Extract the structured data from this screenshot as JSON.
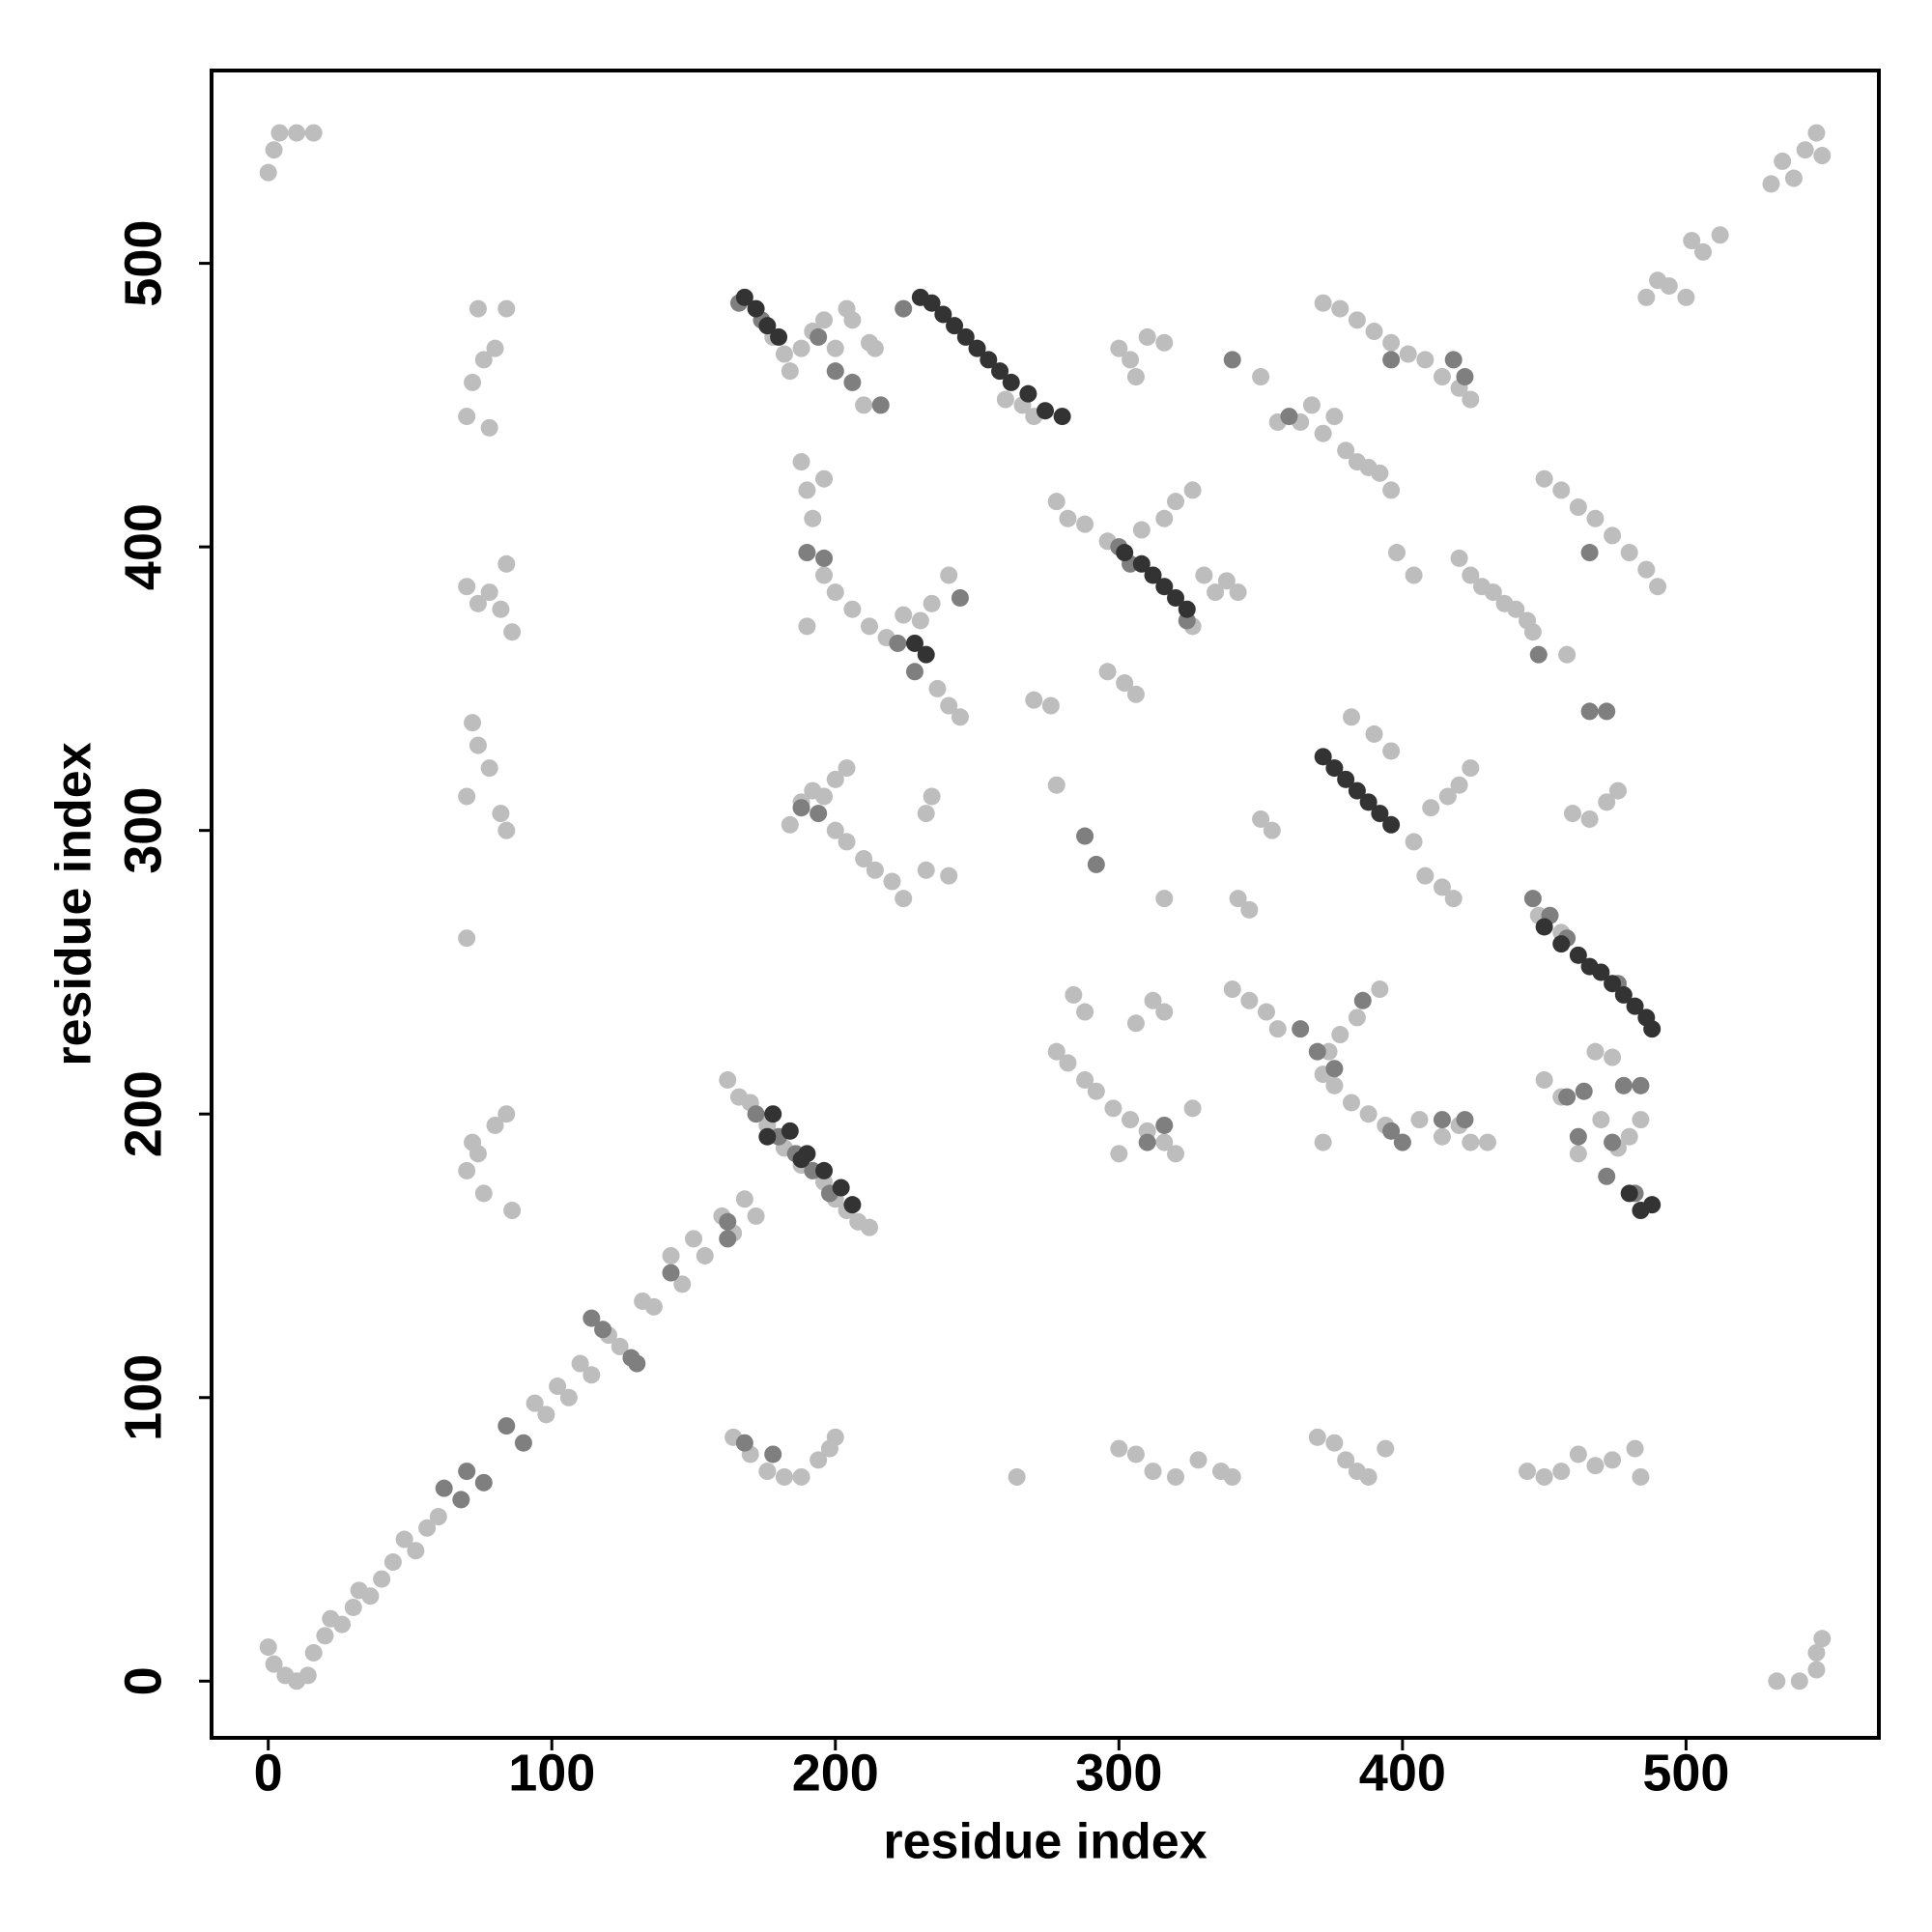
{
  "chart_data": {
    "type": "scatter",
    "xlabel": "residue index",
    "ylabel": "residue index",
    "xlim": [
      -20,
      568
    ],
    "ylim": [
      -20,
      568
    ],
    "xticks": [
      0,
      100,
      200,
      300,
      400,
      500
    ],
    "yticks": [
      0,
      100,
      200,
      300,
      400,
      500
    ],
    "grid": false,
    "series": [
      {
        "color": "#bdbdbd",
        "x": [
          0,
          2,
          6,
          10,
          14,
          16,
          20,
          22,
          26,
          30,
          32,
          36,
          40,
          44,
          48,
          52,
          56,
          60,
          94,
          98,
          102,
          106,
          110,
          114,
          120,
          124,
          132,
          136,
          142,
          146,
          150,
          154,
          160,
          164,
          168,
          172,
          0,
          2,
          4,
          10,
          16,
          532,
          540,
          546,
          546,
          548,
          486,
          490,
          494,
          500,
          502,
          506,
          512,
          530,
          534,
          538,
          542,
          546,
          548,
          162,
          166,
          170,
          176,
          182,
          188,
          196,
          200,
          204,
          208,
          212,
          70,
          72,
          74,
          76,
          80,
          84,
          86,
          70,
          72,
          74,
          78,
          82,
          84,
          70,
          74,
          78,
          82,
          84,
          86,
          70,
          72,
          74,
          76,
          80,
          84,
          78,
          70,
          164,
          170,
          176,
          182,
          188,
          194,
          198,
          200,
          300,
          306,
          312,
          320,
          328,
          336,
          340,
          370,
          376,
          380,
          384,
          388,
          394,
          444,
          450,
          456,
          462,
          468,
          474,
          482,
          484,
          264,
          400,
          406,
          414,
          420,
          424,
          430,
          450,
          456,
          462,
          470,
          476,
          480,
          484,
          184,
          188,
          192,
          196,
          200,
          204,
          206,
          212,
          214,
          210,
          178,
          182,
          260,
          266,
          270,
          188,
          190,
          192,
          196,
          190,
          196,
          200,
          206,
          212,
          218,
          224,
          230,
          234,
          236,
          240,
          244,
          240,
          184,
          188,
          192,
          196,
          200,
          204,
          200,
          204,
          210,
          214,
          220,
          224,
          232,
          234,
          232,
          240,
          278,
          282,
          288,
          296,
          326,
          316,
          320,
          326,
          308,
          300,
          304,
          310,
          316,
          306,
          270,
          276,
          278,
          296,
          302,
          306,
          330,
          334,
          338,
          342,
          350,
          356,
          364,
          368,
          372,
          376,
          380,
          384,
          388,
          392,
          396,
          398,
          404,
          372,
          378,
          384,
          390,
          396,
          402,
          408,
          414,
          420,
          424,
          420,
          424,
          428,
          432,
          436,
          440,
          444,
          446,
          450,
          456,
          462,
          468,
          474,
          480,
          486,
          490,
          458,
          382,
          390,
          396,
          404,
          408,
          414,
          418,
          410,
          416,
          420,
          424,
          350,
          354,
          342,
          346,
          316,
          460,
          466,
          472,
          476,
          278,
          282,
          288,
          292,
          298,
          304,
          310,
          316,
          320,
          300,
          326,
          284,
          288,
          312,
          316,
          306,
          340,
          346,
          352,
          356,
          372,
          376,
          382,
          388,
          394,
          372,
          374,
          378,
          384,
          392,
          468,
          474,
          448,
          456
        ],
        "values": [
          12,
          6,
          2,
          0,
          2,
          10,
          16,
          22,
          20,
          26,
          32,
          30,
          36,
          42,
          50,
          46,
          54,
          58,
          98,
          94,
          104,
          100,
          112,
          108,
          122,
          118,
          134,
          132,
          150,
          140,
          156,
          150,
          164,
          158,
          170,
          164,
          532,
          540,
          546,
          546,
          546,
          0,
          0,
          4,
          10,
          15,
          488,
          494,
          492,
          488,
          508,
          504,
          510,
          528,
          536,
          530,
          540,
          546,
          538,
          212,
          206,
          204,
          196,
          188,
          182,
          176,
          170,
          166,
          162,
          160,
          180,
          190,
          186,
          172,
          196,
          200,
          166,
          312,
          338,
          330,
          322,
          306,
          300,
          386,
          380,
          384,
          378,
          394,
          370,
          446,
          458,
          484,
          466,
          470,
          484,
          442,
          262,
          86,
          80,
          74,
          72,
          72,
          78,
          82,
          86,
          82,
          80,
          74,
          72,
          78,
          74,
          72,
          86,
          84,
          78,
          74,
          72,
          82,
          74,
          72,
          74,
          80,
          76,
          78,
          82,
          72,
          72,
          190,
          198,
          192,
          196,
          190,
          190,
          212,
          206,
          186,
          198,
          188,
          192,
          198,
          462,
          470,
          476,
          480,
          470,
          484,
          480,
          472,
          470,
          450,
          474,
          468,
          452,
          450,
          446,
          430,
          420,
          410,
          424,
          372,
          390,
          384,
          378,
          372,
          368,
          376,
          374,
          380,
          350,
          344,
          340,
          390,
          302,
          310,
          314,
          312,
          318,
          322,
          300,
          296,
          290,
          286,
          282,
          276,
          306,
          312,
          286,
          284,
          416,
          410,
          408,
          402,
          372,
          410,
          416,
          420,
          406,
          470,
          466,
          474,
          472,
          460,
          346,
          344,
          316,
          356,
          352,
          348,
          390,
          384,
          388,
          384,
          460,
          444,
          444,
          450,
          440,
          446,
          434,
          430,
          428,
          426,
          420,
          398,
          390,
          486,
          484,
          480,
          476,
          472,
          468,
          466,
          460,
          456,
          452,
          396,
          390,
          386,
          384,
          380,
          378,
          374,
          370,
          424,
          420,
          414,
          410,
          404,
          398,
          392,
          386,
          362,
          340,
          334,
          328,
          296,
          284,
          280,
          276,
          308,
          312,
          316,
          322,
          304,
          300,
          276,
          272,
          276,
          306,
          304,
          310,
          314,
          222,
          218,
          212,
          208,
          202,
          198,
          194,
          190,
          186,
          186,
          202,
          242,
          236,
          240,
          236,
          232,
          244,
          240,
          236,
          230,
          214,
          210,
          204,
          200,
          196,
          190,
          222,
          228,
          234,
          244,
          222,
          220,
          270,
          264
        ]
      },
      {
        "color": "#7f7f7f",
        "x": [
          62,
          68,
          70,
          76,
          84,
          90,
          114,
          118,
          128,
          130,
          142,
          162,
          162,
          172,
          180,
          186,
          192,
          198,
          166,
          174,
          194,
          200,
          206,
          216,
          224,
          190,
          196,
          222,
          228,
          244,
          188,
          194,
          288,
          292,
          300,
          304,
          324,
          340,
          360,
          396,
          418,
          422,
          364,
          370,
          376,
          386,
          396,
          400,
          414,
          422,
          448,
          466,
          466,
          472,
          446,
          452,
          458,
          476,
          458,
          464,
          478,
          484,
          462,
          474,
          472,
          482,
          310,
          316,
          168,
          178
        ],
        "values": [
          68,
          64,
          74,
          70,
          90,
          84,
          128,
          124,
          114,
          112,
          144,
          156,
          162,
          200,
          192,
          186,
          180,
          172,
          486,
          480,
          474,
          462,
          458,
          450,
          484,
          398,
          396,
          366,
          356,
          382,
          308,
          306,
          298,
          288,
          400,
          394,
          374,
          466,
          446,
          466,
          466,
          460,
          230,
          222,
          216,
          240,
          194,
          190,
          198,
          198,
          362,
          398,
          342,
          342,
          276,
          270,
          262,
          246,
          206,
          208,
          210,
          210,
          192,
          190,
          178,
          172,
          190,
          196,
          84,
          80
        ]
      },
      {
        "color": "#333333",
        "x": [
          168,
          172,
          176,
          180,
          230,
          234,
          238,
          242,
          246,
          250,
          254,
          258,
          262,
          268,
          274,
          280,
          178,
          184,
          190,
          196,
          202,
          206,
          302,
          308,
          312,
          316,
          320,
          324,
          372,
          376,
          380,
          384,
          388,
          392,
          396,
          450,
          456,
          462,
          466,
          470,
          474,
          478,
          482,
          486,
          488,
          228,
          232,
          176,
          188,
          484,
          488,
          480
        ],
        "values": [
          488,
          484,
          478,
          474,
          488,
          486,
          482,
          478,
          474,
          470,
          466,
          462,
          458,
          454,
          448,
          446,
          200,
          194,
          186,
          180,
          174,
          168,
          398,
          394,
          390,
          386,
          382,
          378,
          326,
          322,
          318,
          314,
          310,
          306,
          302,
          266,
          260,
          256,
          252,
          250,
          246,
          242,
          238,
          234,
          230,
          366,
          362,
          192,
          184,
          166,
          168,
          172
        ]
      }
    ]
  }
}
